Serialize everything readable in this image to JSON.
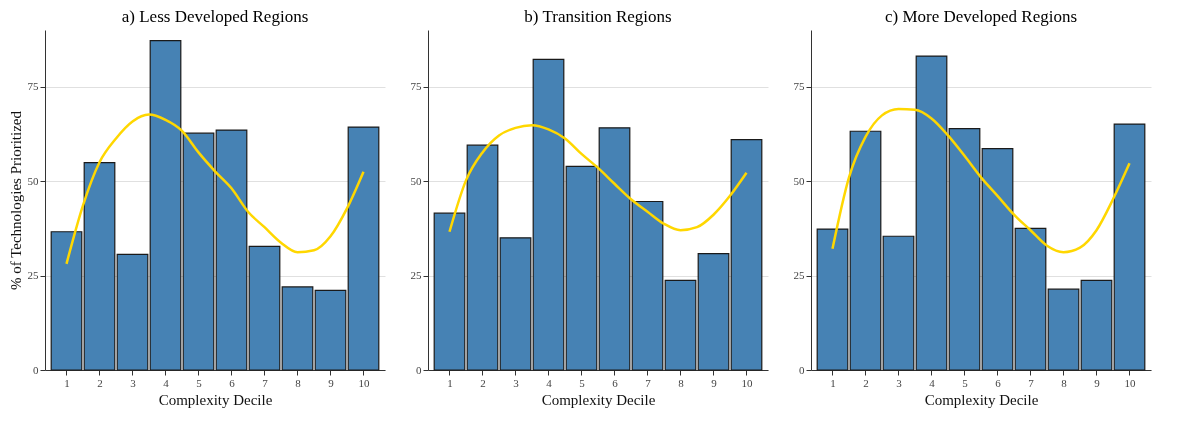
{
  "chart_data": [
    {
      "type": "bar",
      "title": "a) Less Developed Regions",
      "xlabel": "Complexity Decile",
      "ylabel": "% of Technologies Prioritized",
      "x": [
        1,
        2,
        3,
        4,
        5,
        6,
        7,
        8,
        9,
        10
      ],
      "xlim": [
        0.5,
        10.5
      ],
      "xticks": [
        1,
        2,
        3,
        4,
        5,
        6,
        7,
        8,
        9,
        10
      ],
      "ylim": [
        0,
        90
      ],
      "yticks": [
        0,
        25,
        50,
        75
      ],
      "grid": "y",
      "series": [
        {
          "color": "#4682b4",
          "values": [
            36.6,
            54.9,
            30.6,
            87.2,
            62.7,
            63.5,
            32.7,
            22.0,
            21.1,
            64.3
          ]
        },
        {
          "type": "line",
          "color": "#ffd700",
          "x": [
            1,
            1.5,
            2,
            2.5,
            3,
            3.5,
            4,
            4.5,
            5,
            5.5,
            6,
            6.5,
            7,
            7.5,
            8,
            8.5,
            9,
            9.5,
            10
          ],
          "values": [
            28.1,
            43.6,
            55.0,
            61.3,
            65.8,
            67.6,
            66.2,
            63.3,
            57.6,
            52.6,
            48.1,
            41.9,
            37.8,
            33.7,
            31.2,
            31.7,
            35.4,
            42.8,
            52.5
          ]
        }
      ]
    },
    {
      "type": "bar",
      "title": "b) Transition Regions",
      "xlabel": "Complexity Decile",
      "x": [
        1,
        2,
        3,
        4,
        5,
        6,
        7,
        8,
        9,
        10
      ],
      "xlim": [
        0.5,
        10.5
      ],
      "xticks": [
        1,
        2,
        3,
        4,
        5,
        6,
        7,
        8,
        9,
        10
      ],
      "ylim": [
        0,
        90
      ],
      "yticks": [
        0,
        25,
        50,
        75
      ],
      "grid": "y",
      "series": [
        {
          "color": "#4682b4",
          "values": [
            41.5,
            59.5,
            35.0,
            82.2,
            53.9,
            64.1,
            44.6,
            23.7,
            30.8,
            61.0
          ]
        },
        {
          "type": "line",
          "color": "#ffd700",
          "x": [
            1,
            1.5,
            2,
            2.5,
            3,
            3.5,
            4,
            4.5,
            5,
            5.5,
            6,
            6.5,
            7,
            7.5,
            8,
            8.5,
            9,
            9.5,
            10
          ],
          "values": [
            36.6,
            50.2,
            57.6,
            62.1,
            64.1,
            64.8,
            63.7,
            61.3,
            57.2,
            53.5,
            49.3,
            45.2,
            41.9,
            38.7,
            37.0,
            37.8,
            41.1,
            46.1,
            52.2
          ]
        }
      ]
    },
    {
      "type": "bar",
      "title": "c) More Developed Regions",
      "xlabel": "Complexity Decile",
      "x": [
        1,
        2,
        3,
        4,
        5,
        6,
        7,
        8,
        9,
        10
      ],
      "xlim": [
        0.5,
        10.5
      ],
      "xticks": [
        1,
        2,
        3,
        4,
        5,
        6,
        7,
        8,
        9,
        10
      ],
      "ylim": [
        0,
        90
      ],
      "yticks": [
        0,
        25,
        50,
        75
      ],
      "grid": "y",
      "series": [
        {
          "color": "#4682b4",
          "values": [
            37.3,
            63.2,
            35.4,
            83.1,
            63.9,
            58.6,
            37.5,
            21.4,
            23.7,
            65.1
          ]
        },
        {
          "type": "line",
          "color": "#ffd700",
          "x": [
            1,
            1.5,
            2,
            2.5,
            3,
            3.5,
            4,
            4.5,
            5,
            5.5,
            6,
            6.5,
            7,
            7.5,
            8,
            8.5,
            9,
            9.5,
            10
          ],
          "values": [
            32.1,
            51.0,
            61.7,
            67.4,
            69.1,
            68.9,
            66.6,
            62.1,
            56.7,
            51.0,
            46.1,
            41.1,
            37.0,
            32.9,
            31.2,
            32.4,
            37.0,
            45.2,
            54.7
          ]
        }
      ]
    }
  ]
}
